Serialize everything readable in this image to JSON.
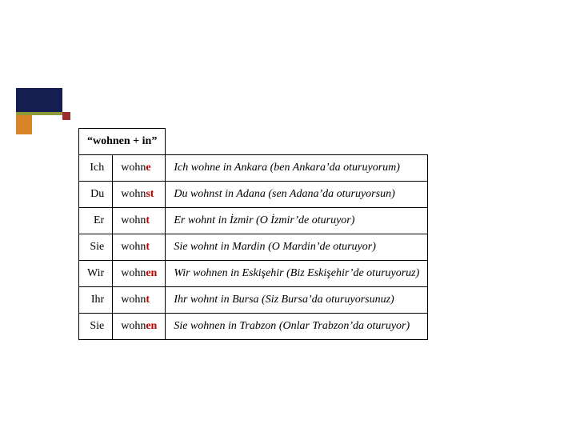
{
  "accent_colors": {
    "navy": "#141e50",
    "olive": "#8f9a3a",
    "orange": "#d98628",
    "red": "#9e2e2e"
  },
  "table": {
    "header": "“wohnen + in”",
    "rows": [
      {
        "pronoun": "Ich",
        "stem": "wohn",
        "ending": "e",
        "example_subj": "Ich",
        "example_pred": " wohne in Ankara ",
        "example_trans": "(ben Ankara’da oturuyorum)"
      },
      {
        "pronoun": "Du",
        "stem": "wohn",
        "ending": "st",
        "example_subj": "Du",
        "example_pred": " wohnst in Adana ",
        "example_trans": "(sen Adana’da oturuyorsun)"
      },
      {
        "pronoun": "Er",
        "stem": "wohn",
        "ending": "t",
        "example_subj": "Er",
        "example_pred": " wohnt in İzmir ",
        "example_trans": "(O İzmir’de oturuyor)"
      },
      {
        "pronoun": "Sie",
        "stem": "wohn",
        "ending": "t",
        "example_subj": "Sie ",
        "example_pred": " wohnt in Mardin ",
        "example_trans": "(O Mardin’de oturuyor)"
      },
      {
        "pronoun": "Wir",
        "stem": "wohn",
        "ending": "en",
        "example_subj": "Wir",
        "example_pred": " wohnen in Eskişehir ",
        "example_trans": "(Biz Eskişehir’de oturuyoruz)"
      },
      {
        "pronoun": "Ihr",
        "stem": "wohn",
        "ending": "t",
        "example_subj": "Ihr",
        "example_pred": " wohnt in Bursa ",
        "example_trans": "(Siz Bursa’da oturuyorsunuz)"
      },
      {
        "pronoun": "Sie",
        "stem": "wohn",
        "ending": "en",
        "example_subj": "Sie",
        "example_pred": " wohnen in Trabzon ",
        "example_trans": "(Onlar Trabzon’da oturuyor)"
      }
    ]
  }
}
